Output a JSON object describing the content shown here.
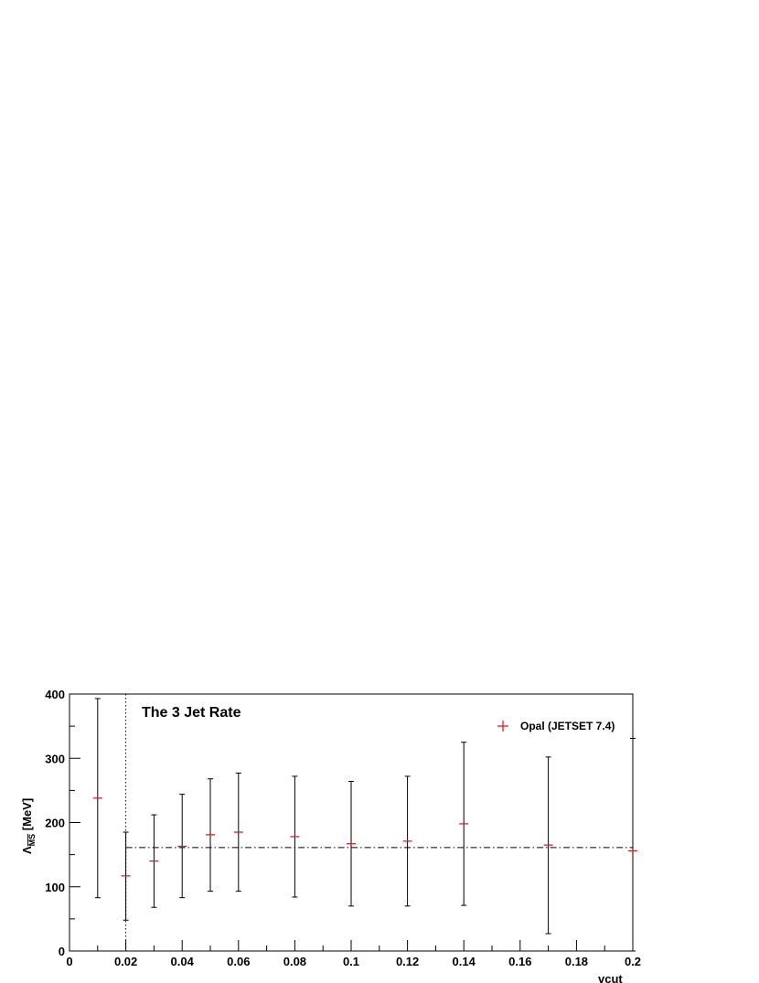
{
  "chart_data": {
    "type": "scatter",
    "title": "The 3 Jet Rate",
    "xlabel": "vcut",
    "ylabel": "Λ [MeV]",
    "ylabel_subscript": "MS",
    "xlim": [
      0,
      0.2
    ],
    "ylim": [
      0,
      400
    ],
    "x_ticks": [
      0,
      0.02,
      0.04,
      0.06,
      0.08,
      0.1,
      0.12,
      0.14,
      0.16,
      0.18,
      0.2
    ],
    "x_tick_labels": [
      "0",
      "0.02",
      "0.04",
      "0.06",
      "0.08",
      "0.1",
      "0.12",
      "0.14",
      "0.16",
      "0.18",
      "0.2"
    ],
    "y_ticks": [
      0,
      100,
      200,
      300,
      400
    ],
    "y_tick_labels": [
      "0",
      "100",
      "200",
      "300",
      "400"
    ],
    "grid": false,
    "legend_position": "top-right",
    "series": [
      {
        "name": "Opal (JETSET 7.4)",
        "color": "#e02020",
        "marker": "plus",
        "points": [
          {
            "x": 0.01,
            "y": 238,
            "low": 83,
            "high": 393
          },
          {
            "x": 0.02,
            "y": 117,
            "low": 48,
            "high": 185
          },
          {
            "x": 0.03,
            "y": 140,
            "low": 68,
            "high": 212
          },
          {
            "x": 0.04,
            "y": 163,
            "low": 83,
            "high": 244
          },
          {
            "x": 0.05,
            "y": 181,
            "low": 93,
            "high": 268
          },
          {
            "x": 0.06,
            "y": 185,
            "low": 93,
            "high": 277
          },
          {
            "x": 0.08,
            "y": 178,
            "low": 84,
            "high": 272
          },
          {
            "x": 0.1,
            "y": 167,
            "low": 70,
            "high": 264
          },
          {
            "x": 0.12,
            "y": 171,
            "low": 70,
            "high": 272
          },
          {
            "x": 0.14,
            "y": 198,
            "low": 71,
            "high": 325
          },
          {
            "x": 0.17,
            "y": 165,
            "low": 27,
            "high": 302
          },
          {
            "x": 0.2,
            "y": 156,
            "low": 0,
            "high": 331
          }
        ]
      }
    ],
    "reference_line": {
      "y": 161,
      "x_from": 0.02,
      "x_to": 0.2,
      "style": "dash-dot"
    },
    "vertical_markers": [
      {
        "x": 0.02,
        "style": "dotted"
      },
      {
        "x": 0.2,
        "style": "dotted"
      }
    ]
  }
}
